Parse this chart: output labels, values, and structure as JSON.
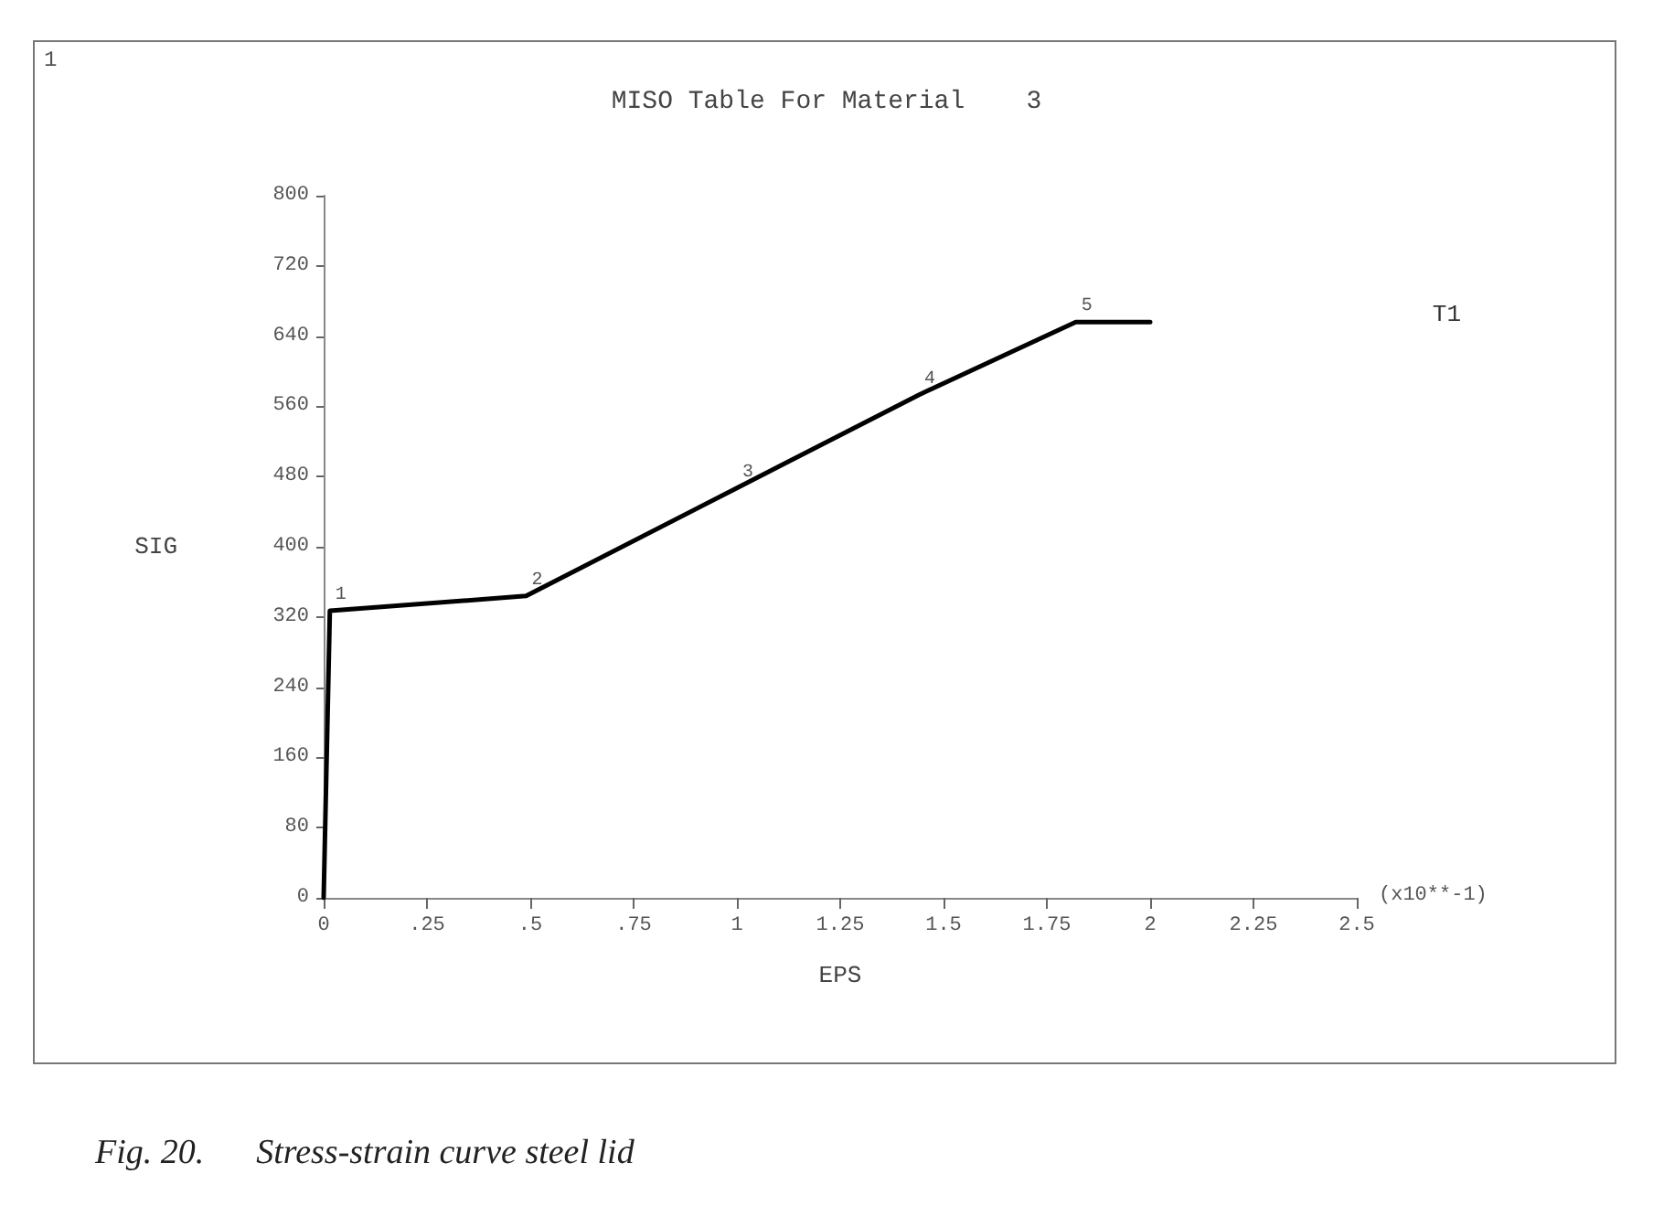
{
  "chart_data": {
    "type": "line",
    "title": "MISO Table For Material    3",
    "xlabel": "EPS",
    "ylabel": "SIG",
    "x": [
      0,
      0.015,
      0.49,
      1.0,
      1.44,
      1.82,
      2.0
    ],
    "series": [
      {
        "name": "T1",
        "color": "#000000",
        "values": [
          0,
          327,
          344,
          467,
          573,
          656,
          656
        ]
      }
    ],
    "xlim": [
      0,
      2.5
    ],
    "xticks": [
      0,
      {
        "value": 0.25,
        "label": ".25"
      },
      {
        "value": 0.5,
        "label": ".5"
      },
      {
        "value": 0.75,
        "label": ".75"
      },
      1,
      1.25,
      1.5,
      1.75,
      2,
      2.25,
      2.5
    ],
    "ylim": [
      0,
      800
    ],
    "yticks": [
      0,
      80,
      160,
      240,
      320,
      400,
      480,
      560,
      640,
      720,
      800
    ],
    "grid": false,
    "legend": "top right",
    "marker": "none",
    "line_style": "solid",
    "annotations": [
      "1",
      "(x10**-1)",
      "Fig. 20.      Stress-strain curve steel lid",
      {
        "text": "1",
        "x": 0.015,
        "y": 327
      },
      {
        "text": "2",
        "x": 0.49,
        "y": 344
      },
      {
        "text": "3",
        "x": 1.0,
        "y": 467
      },
      {
        "text": "4",
        "x": 1.44,
        "y": 573
      },
      {
        "text": "5",
        "x": 1.82,
        "y": 656
      }
    ]
  }
}
